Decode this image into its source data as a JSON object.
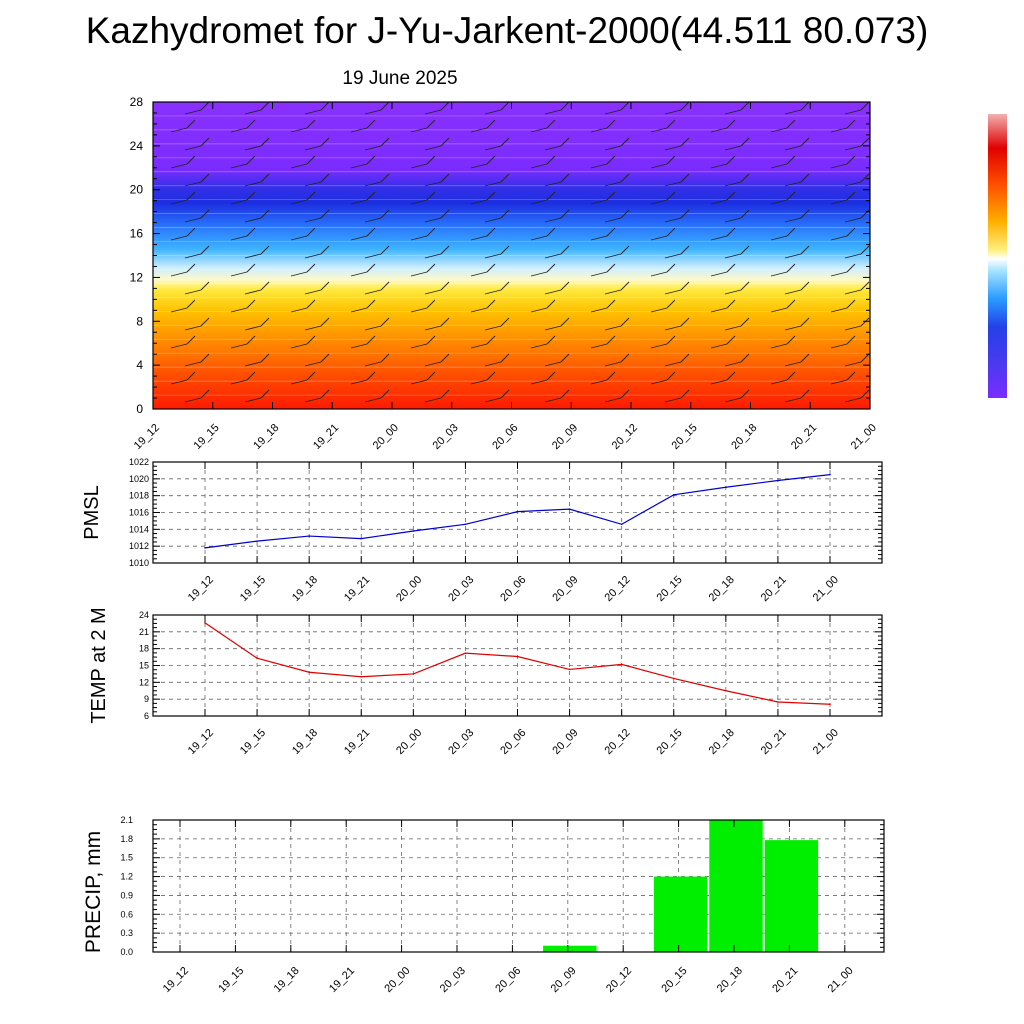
{
  "title": "Kazhydromet for J-Yu-Jarkent-2000(44.511 80.073)",
  "subtitle": "19 June 2025",
  "colors": {
    "pmsl_line": "#0000cc",
    "temp_line": "#e00000",
    "precip_bar": "#00ee00",
    "grid": "#666666",
    "colorbar": [
      "#7a2cff",
      "#5a3cf0",
      "#2030e0",
      "#3a6cff",
      "#2a9bff",
      "#6fd0ff",
      "#e6f6ff",
      "#fff7a0",
      "#ffd400",
      "#ffa300",
      "#ff6a00",
      "#ff2a10",
      "#e00000",
      "#f0a0a0"
    ]
  },
  "chart_data": [
    {
      "type": "heatmap",
      "name": "vertical-profile",
      "categories": [
        "19_12",
        "19_15",
        "19_18",
        "19_21",
        "20_00",
        "20_03",
        "20_06",
        "20_09",
        "20_12",
        "20_15",
        "20_18",
        "20_21",
        "21_00"
      ],
      "ylim": [
        0,
        28
      ],
      "yticks": [
        "0",
        "4",
        "8",
        "12",
        "16",
        "20",
        "24",
        "28"
      ],
      "wind_barbs": true
    },
    {
      "type": "line",
      "name": "pmsl",
      "ylabel": "PMSL",
      "categories": [
        "19_12",
        "19_15",
        "19_18",
        "19_21",
        "20_00",
        "20_03",
        "20_06",
        "20_09",
        "20_12",
        "20_15",
        "20_18",
        "20_21",
        "21_00"
      ],
      "values": [
        1011.8,
        1012.6,
        1013.2,
        1012.9,
        1013.8,
        1014.6,
        1016.1,
        1016.4,
        1014.6,
        1018.1,
        1019.0,
        1019.8,
        1020.5
      ],
      "ylim": [
        1010,
        1022
      ],
      "yticks": [
        "1010",
        "1012",
        "1014",
        "1016",
        "1018",
        "1020",
        "1022"
      ]
    },
    {
      "type": "line",
      "name": "temp",
      "ylabel": "TEMP at 2 M",
      "categories": [
        "19_12",
        "19_15",
        "19_18",
        "19_21",
        "20_00",
        "20_03",
        "20_06",
        "20_09",
        "20_12",
        "20_15",
        "20_18",
        "20_21",
        "21_00"
      ],
      "values": [
        22.6,
        16.3,
        13.8,
        13.0,
        13.5,
        17.2,
        16.6,
        14.3,
        15.2,
        12.7,
        10.5,
        8.5,
        8.1
      ],
      "ylim": [
        6,
        24
      ],
      "yticks": [
        "6",
        "9",
        "12",
        "15",
        "18",
        "21",
        "24"
      ]
    },
    {
      "type": "bar",
      "name": "precip",
      "ylabel": "PRECIP, mm",
      "categories": [
        "19_12",
        "19_15",
        "19_18",
        "19_21",
        "20_00",
        "20_03",
        "20_06",
        "20_09",
        "20_12",
        "20_15",
        "20_18",
        "20_21",
        "21_00"
      ],
      "values": [
        0,
        0,
        0,
        0,
        0,
        0,
        0,
        0.1,
        0,
        1.2,
        2.1,
        1.78,
        0
      ],
      "ylim": [
        0,
        2.1
      ],
      "yticks": [
        "0.0",
        "0.3",
        "0.6",
        "0.9",
        "1.2",
        "1.5",
        "1.8",
        "2.1"
      ]
    }
  ]
}
